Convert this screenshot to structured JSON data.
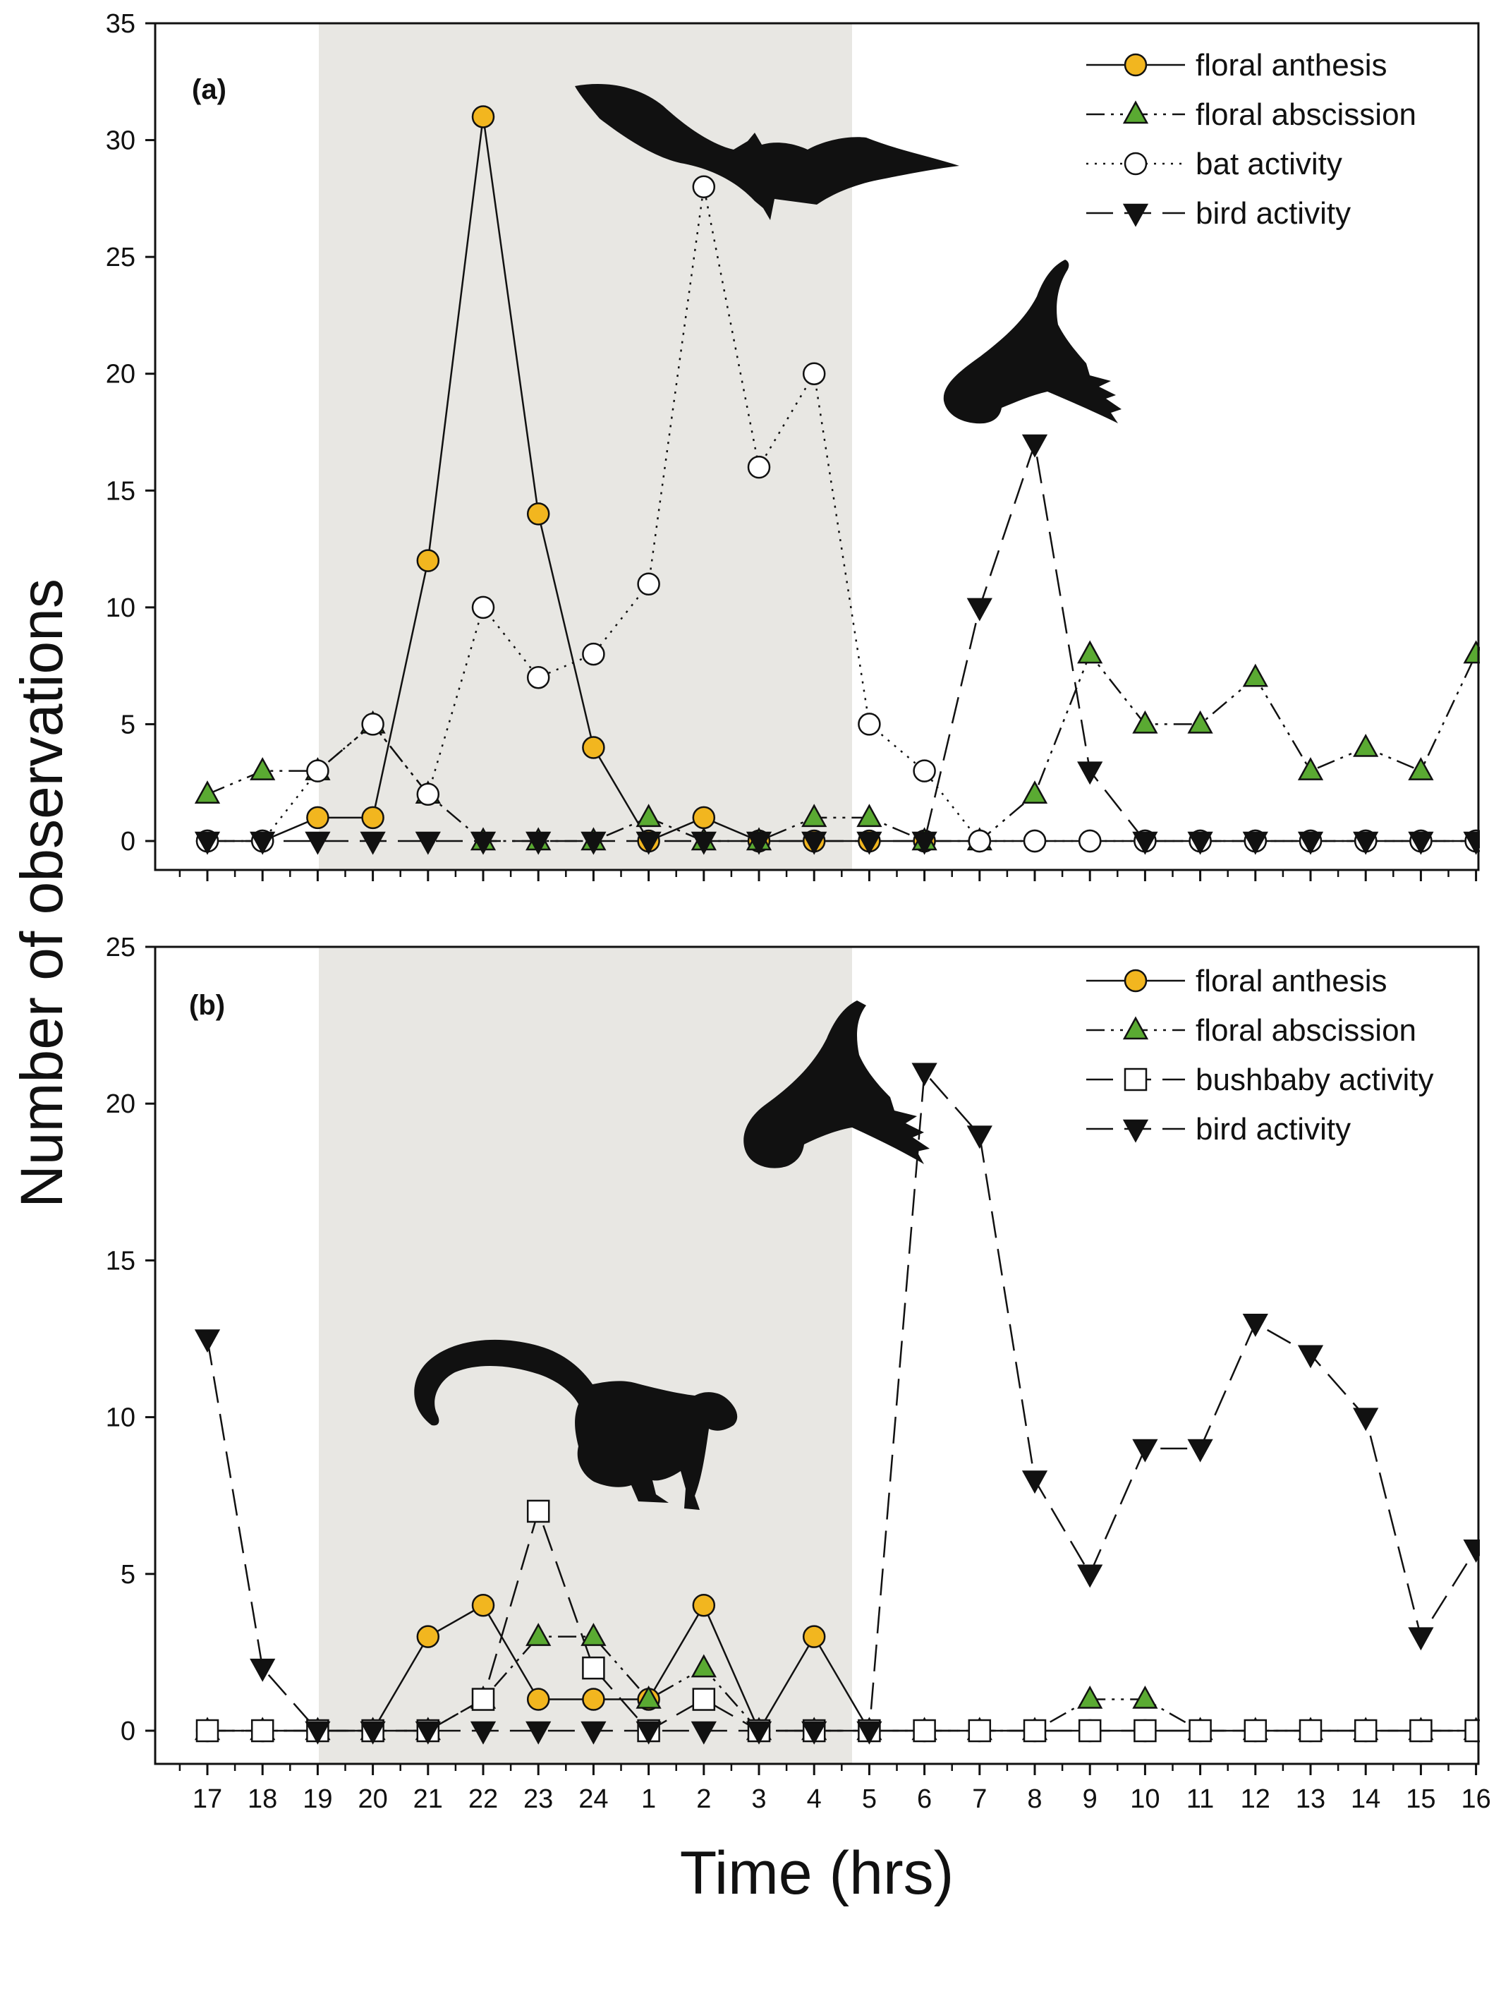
{
  "figure": {
    "ylabel": "Number of observations",
    "xlabel": "Time (hrs)",
    "x_tick_labels": [
      "17",
      "18",
      "19",
      "20",
      "21",
      "22",
      "23",
      "24",
      "1",
      "2",
      "3",
      "4",
      "5",
      "6",
      "7",
      "8",
      "9",
      "10",
      "11",
      "12",
      "13",
      "14",
      "15",
      "16"
    ]
  },
  "colors": {
    "anthesis": "#f2b61f",
    "abscission": "#5aaa32",
    "night_shade": "#e8e7e3",
    "ink": "#111111"
  },
  "chart_data": [
    {
      "type": "line",
      "panel_label": "(a)",
      "title": "",
      "xlabel": "Time (hrs)",
      "ylabel": "Number of observations",
      "ylim": [
        0,
        35
      ],
      "y_ticks": [
        0,
        5,
        10,
        15,
        20,
        25,
        30,
        35
      ],
      "night_shading": [
        "19",
        "4.7"
      ],
      "categories": [
        "17",
        "18",
        "19",
        "20",
        "21",
        "22",
        "23",
        "24",
        "1",
        "2",
        "3",
        "4",
        "5",
        "6",
        "7",
        "8",
        "9",
        "10",
        "11",
        "12",
        "13",
        "14",
        "15",
        "16"
      ],
      "legend_position": "top-right",
      "series": [
        {
          "name": "floral anthesis",
          "marker": "circle",
          "fill": "anthesis",
          "dash": "solid",
          "values": [
            0,
            0,
            1,
            1,
            12,
            31,
            14,
            4,
            0,
            1,
            0,
            0,
            0,
            0,
            0,
            0,
            0,
            0,
            0,
            0,
            0,
            0,
            0,
            0
          ]
        },
        {
          "name": "floral abscission",
          "marker": "triangle-up",
          "fill": "abscission",
          "dash": "dash-dot-dot",
          "values": [
            2,
            3,
            3,
            5,
            2,
            0,
            0,
            0,
            1,
            0,
            0,
            1,
            1,
            0,
            0,
            2,
            8,
            5,
            5,
            7,
            3,
            4,
            3,
            8
          ]
        },
        {
          "name": "bat activity",
          "marker": "circle",
          "fill": "white",
          "dash": "dotted",
          "values": [
            0,
            0,
            3,
            5,
            2,
            10,
            7,
            8,
            11,
            28,
            16,
            20,
            5,
            3,
            0,
            0,
            0,
            0,
            0,
            0,
            0,
            0,
            0,
            0
          ]
        },
        {
          "name": "bird activity",
          "marker": "triangle-down",
          "fill": "black",
          "dash": "long-dash",
          "values": [
            0,
            0,
            0,
            0,
            0,
            0,
            0,
            0,
            0,
            0,
            0,
            0,
            0,
            0,
            10,
            17,
            3,
            0,
            0,
            0,
            0,
            0,
            0,
            0
          ]
        }
      ]
    },
    {
      "type": "line",
      "panel_label": "(b)",
      "title": "",
      "xlabel": "Time (hrs)",
      "ylabel": "Number of observations",
      "ylim": [
        0,
        25
      ],
      "y_ticks": [
        0,
        5,
        10,
        15,
        20,
        25
      ],
      "night_shading": [
        "19",
        "4.7"
      ],
      "categories": [
        "17",
        "18",
        "19",
        "20",
        "21",
        "22",
        "23",
        "24",
        "1",
        "2",
        "3",
        "4",
        "5",
        "6",
        "7",
        "8",
        "9",
        "10",
        "11",
        "12",
        "13",
        "14",
        "15",
        "16"
      ],
      "legend_position": "top-right",
      "series": [
        {
          "name": "floral anthesis",
          "marker": "circle",
          "fill": "anthesis",
          "dash": "solid",
          "values": [
            0,
            0,
            0,
            0,
            3,
            4,
            1,
            1,
            1,
            4,
            0,
            3,
            0,
            0,
            0,
            0,
            0,
            0,
            0,
            0,
            0,
            0,
            0,
            0
          ]
        },
        {
          "name": "floral abscission",
          "marker": "triangle-up",
          "fill": "abscission",
          "dash": "dash-dot-dot",
          "values": [
            0,
            0,
            0,
            0,
            0,
            1,
            3,
            3,
            1,
            2,
            0,
            0,
            0,
            0,
            0,
            0,
            1,
            1,
            0,
            0,
            0,
            0,
            0,
            0
          ]
        },
        {
          "name": "bushbaby activity",
          "marker": "square",
          "fill": "white",
          "dash": "long-dash",
          "values": [
            0,
            0,
            0,
            0,
            0,
            1,
            7,
            2,
            0,
            1,
            0,
            0,
            0,
            0,
            0,
            0,
            0,
            0,
            0,
            0,
            0,
            0,
            0,
            0
          ]
        },
        {
          "name": "bird activity",
          "marker": "triangle-down",
          "fill": "black",
          "dash": "long-dash",
          "values": [
            12.5,
            2,
            0,
            0,
            0,
            0,
            0,
            0,
            0,
            0,
            0,
            0,
            0,
            21,
            19,
            8,
            5,
            9,
            9,
            13,
            12,
            10,
            3,
            5.8
          ]
        }
      ]
    }
  ]
}
